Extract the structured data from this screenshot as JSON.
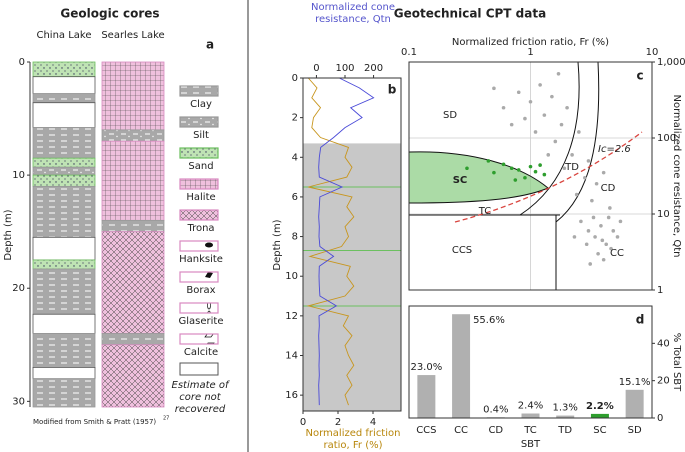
{
  "titles": {
    "left": "Geologic cores",
    "right": "Geotechnical CPT data"
  },
  "geologic_cores": {
    "panel_label": "a",
    "ylabel": "Depth (m)",
    "ylim": [
      0,
      30.5
    ],
    "yticks": [
      0,
      10,
      20,
      30
    ],
    "cores": [
      {
        "name": "China Lake",
        "intervals": [
          {
            "top": 0,
            "bottom": 1.3,
            "lith": "Sand"
          },
          {
            "top": 1.3,
            "bottom": 2.8,
            "lith": "Estimate of core not recovered"
          },
          {
            "top": 2.8,
            "bottom": 3.6,
            "lith": "Clay"
          },
          {
            "top": 3.6,
            "bottom": 5.8,
            "lith": "Estimate of core not recovered"
          },
          {
            "top": 5.8,
            "bottom": 8.5,
            "lith": "Clay"
          },
          {
            "top": 8.5,
            "bottom": 9.3,
            "lith": "Sand"
          },
          {
            "top": 9.3,
            "bottom": 10,
            "lith": "Silt"
          },
          {
            "top": 10,
            "bottom": 11,
            "lith": "Sand"
          },
          {
            "top": 11,
            "bottom": 15.5,
            "lith": "Clay"
          },
          {
            "top": 15.5,
            "bottom": 17.5,
            "lith": "Estimate of core not recovered"
          },
          {
            "top": 17.5,
            "bottom": 18.3,
            "lith": "Sand"
          },
          {
            "top": 18.3,
            "bottom": 22.3,
            "lith": "Clay"
          },
          {
            "top": 22.3,
            "bottom": 24,
            "lith": "Estimate of core not recovered"
          },
          {
            "top": 24,
            "bottom": 27,
            "lith": "Clay"
          },
          {
            "top": 27,
            "bottom": 28,
            "lith": "Estimate of core not recovered"
          },
          {
            "top": 28,
            "bottom": 30.5,
            "lith": "Clay"
          }
        ]
      },
      {
        "name": "Searles Lake",
        "intervals": [
          {
            "top": 0,
            "bottom": 6,
            "lith": "Halite"
          },
          {
            "top": 6,
            "bottom": 7,
            "lith": "Silt"
          },
          {
            "top": 7,
            "bottom": 14,
            "lith": "Halite"
          },
          {
            "top": 14,
            "bottom": 15,
            "lith": "Clay"
          },
          {
            "top": 15,
            "bottom": 24,
            "lith": "Trona"
          },
          {
            "top": 24,
            "bottom": 25,
            "lith": "Clay"
          },
          {
            "top": 25,
            "bottom": 30.5,
            "lith": "Trona"
          }
        ]
      }
    ],
    "legend": [
      "Clay",
      "Silt",
      "Sand",
      "Halite",
      "Trona",
      "Hanksite",
      "Borax",
      "Glaserite",
      "Calcite",
      "Estimate of core not recovered"
    ],
    "credit": "Modified from Smith & Pratt (1957)",
    "credit_ref": "27"
  },
  "chart_data": [
    {
      "type": "line",
      "panel_label": "b",
      "ylabel": "Depth (m)",
      "xlabel": "Normalized friction ratio, Fr (%)",
      "x2label": "Normalized cone resistance, Qtn",
      "ylim": [
        0,
        16.8
      ],
      "yticks": [
        0,
        2,
        4,
        6,
        8,
        10,
        12,
        14,
        16
      ],
      "xlim": [
        0,
        5.6
      ],
      "xticks": [
        0,
        2,
        4
      ],
      "x2lim": [
        -47,
        296
      ],
      "x2ticks": [
        0,
        100,
        200
      ],
      "shaded_depth": [
        3.3,
        16.8
      ],
      "marked_depths": [
        5.5,
        8.7,
        11.5
      ],
      "depth": [
        0,
        0.5,
        1,
        1.5,
        2,
        2.5,
        3,
        3.5,
        4,
        4.5,
        5,
        5.5,
        6,
        6.5,
        7,
        7.5,
        8,
        8.5,
        9,
        9.5,
        10,
        10.5,
        11,
        11.5,
        12,
        12.5,
        13,
        13.5,
        14,
        14.5,
        15,
        15.5,
        16,
        16.5
      ],
      "series": [
        {
          "color": "#c8961e",
          "values": [
            0.3,
            0.8,
            0.5,
            1,
            0.6,
            0.5,
            1,
            2.6,
            2.4,
            2.8,
            2.5,
            0.3,
            2.8,
            2.5,
            2.9,
            2.4,
            2.6,
            2.2,
            0.4,
            2.7,
            2.5,
            2.9,
            2.4,
            0.3,
            2.6,
            2.3,
            2.8,
            2.4,
            2.6,
            2.9,
            2.5,
            2.8,
            2.4,
            2.6
          ]
        },
        {
          "color": "#4a4ad8",
          "axis": "x2",
          "values": [
            80,
            150,
            200,
            120,
            160,
            100,
            60,
            15,
            10,
            8,
            10,
            90,
            12,
            10,
            8,
            10,
            9,
            12,
            60,
            10,
            9,
            10,
            12,
            70,
            9,
            10,
            8,
            9,
            10,
            9,
            10,
            8,
            9,
            10
          ]
        }
      ]
    },
    {
      "type": "scatter",
      "panel_label": "c",
      "log_x": true,
      "log_y": true,
      "xlabel": "Normalized friction ratio, Fr (%)",
      "ylabel": "Normalized cone resistance, Qtn",
      "xlim": [
        0.1,
        10
      ],
      "ylim": [
        1,
        1000
      ],
      "xticks": [
        0.1,
        1,
        10
      ],
      "yticks": [
        1,
        10,
        100,
        {
          "value": 1000,
          "label": "1,000"
        }
      ],
      "grid": true,
      "zones": [
        "SD",
        "SC",
        "TD",
        "CD",
        "TC",
        "CCS",
        "CC"
      ],
      "annotation": "Ic=2.6",
      "series": [
        {
          "color": "#aaaaaa",
          "x": [
            0.6,
            0.8,
            1.0,
            1.2,
            0.9,
            1.5,
            1.3,
            2.0,
            1.1,
            0.7,
            1.8,
            2.5,
            1.6,
            2.2,
            3,
            1.4,
            2.8,
            3.5,
            1.9,
            4,
            2.4,
            3.2,
            4.5,
            2.6,
            3.0,
            3.4,
            3.8,
            4.2,
            4.8,
            5.2,
            3.6,
            4.0,
            2.9,
            5.5,
            3.3,
            4.4,
            2.3,
            3.9,
            4.6,
            3.1,
            0.5,
            1.7
          ],
          "values": [
            250,
            400,
            300,
            500,
            180,
            350,
            200,
            250,
            120,
            150,
            150,
            120,
            90,
            60,
            50,
            60,
            30,
            25,
            40,
            35,
            18,
            15,
            12,
            8,
            6,
            5,
            7,
            4,
            6,
            5,
            3,
            2.5,
            4,
            8,
            9,
            9,
            5,
            4.5,
            3.5,
            2.2,
            450,
            700
          ]
        },
        {
          "color": "#2e9e2e",
          "x": [
            0.3,
            0.5,
            0.6,
            0.7,
            0.8,
            0.9,
            1.0,
            1.1,
            1.3,
            0.45,
            0.75,
            1.2
          ],
          "values": [
            40,
            35,
            45,
            40,
            38,
            30,
            42,
            36,
            33,
            50,
            28,
            44
          ]
        }
      ]
    },
    {
      "type": "bar",
      "panel_label": "d",
      "xlabel": "SBT",
      "ylabel": "% Total SBT",
      "categories": [
        "CCS",
        "CC",
        "CD",
        "TC",
        "TD",
        "SC",
        "SD"
      ],
      "values": [
        23.0,
        55.6,
        0.4,
        2.4,
        1.3,
        2.2,
        15.1
      ],
      "value_labels": [
        "23.0%",
        "55.6%",
        "0.4%",
        "2.4%",
        "1.3%",
        "2.2%",
        "15.1%"
      ],
      "colors": [
        "#b0b0b0",
        "#b0b0b0",
        "#b0b0b0",
        "#b0b0b0",
        "#b0b0b0",
        "#2e9e2e",
        "#b0b0b0"
      ],
      "ylim": [
        0,
        60
      ],
      "yticks": [
        0,
        20,
        40
      ]
    }
  ]
}
